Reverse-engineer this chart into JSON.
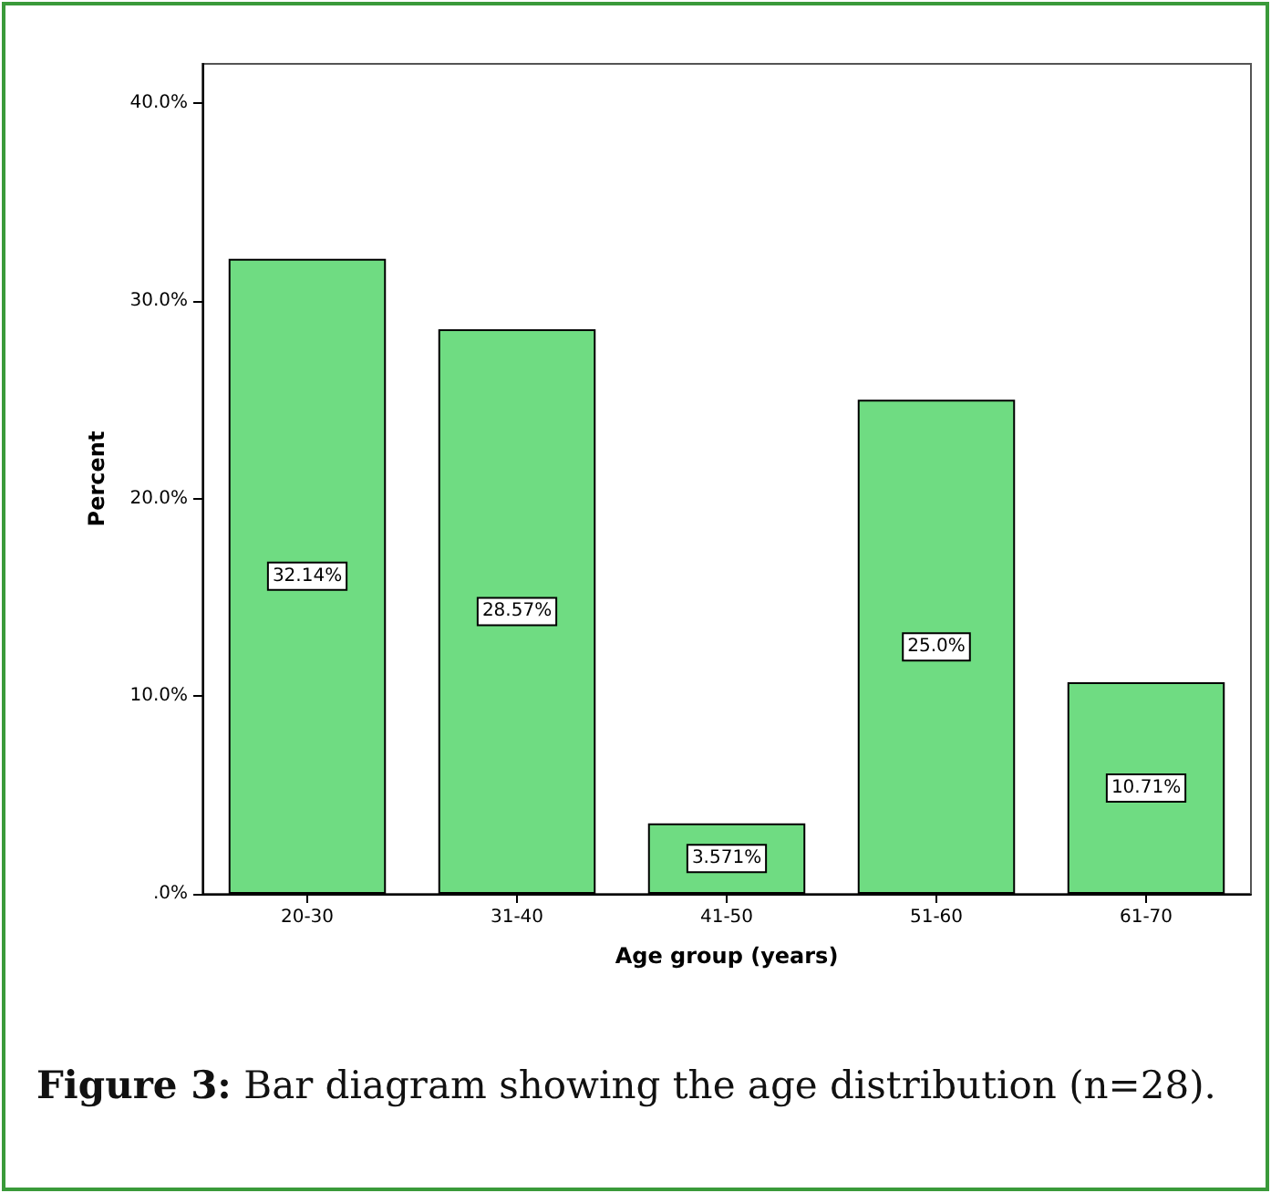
{
  "chart_data": {
    "type": "bar",
    "xlabel": "Age group (years)",
    "ylabel": "Percent",
    "categories": [
      "20-30",
      "31-40",
      "41-50",
      "51-60",
      "61-70"
    ],
    "values": [
      32.14,
      28.57,
      3.571,
      25.0,
      10.71
    ],
    "value_labels": [
      "32.14%",
      "28.57%",
      "3.571%",
      "25.0%",
      "10.71%"
    ],
    "color": "#6fdc82",
    "ylim": [
      0,
      42
    ],
    "yticks": [
      {
        "value": 0,
        "label": ".0%"
      },
      {
        "value": 10,
        "label": "10.0%"
      },
      {
        "value": 20,
        "label": "20.0%"
      },
      {
        "value": 30,
        "label": "30.0%"
      },
      {
        "value": 40,
        "label": "40.0%"
      }
    ],
    "annotations": [
      "Figure 3:",
      "Bar diagram showing the age distribution (n=28)."
    ]
  }
}
